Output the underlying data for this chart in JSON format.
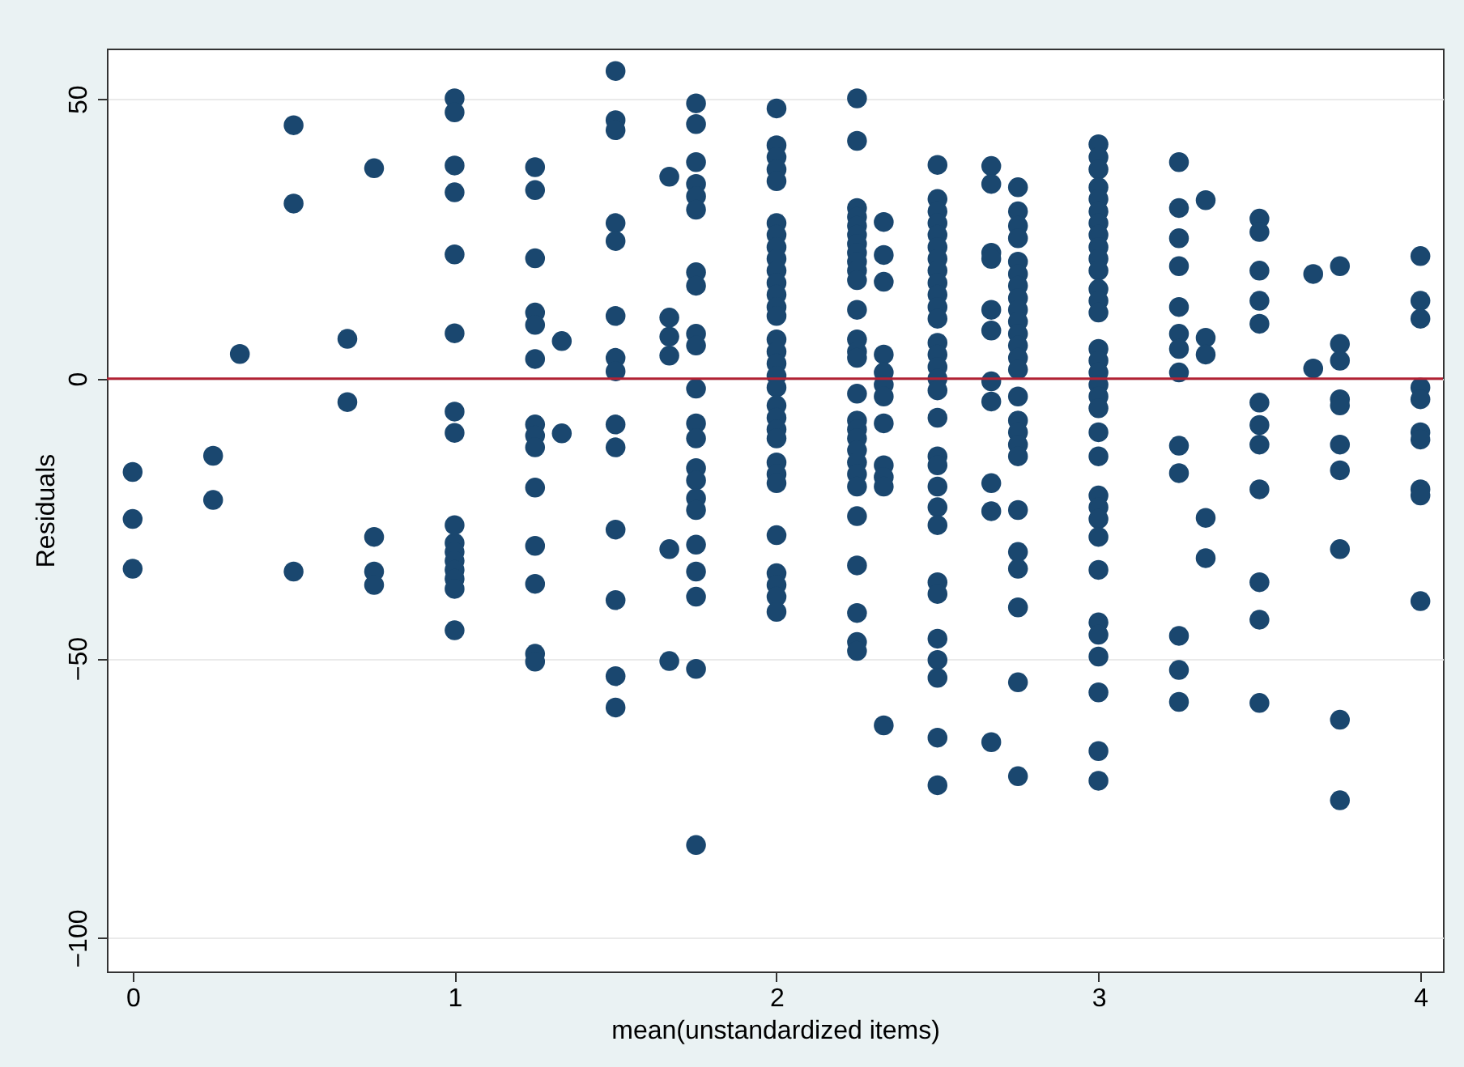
{
  "chart_data": {
    "type": "scatter",
    "xlabel": "mean(unstandardized items)",
    "ylabel": "Residuals",
    "xlim": [
      -0.08,
      4.07
    ],
    "ylim": [
      -106,
      59
    ],
    "xticks": [
      0,
      1,
      2,
      3,
      4
    ],
    "yticks": [
      -100,
      -50,
      0,
      50
    ],
    "grid": "y",
    "marker": "circle",
    "ref_lines": [
      {
        "axis": "y",
        "value": 0,
        "color": "#b22234"
      }
    ],
    "series": [
      {
        "color": "#1a476f",
        "x": [
          0,
          0,
          0,
          0.25,
          0.25,
          0.333,
          0.5,
          0.5,
          0.5,
          0.667,
          0.667,
          0.75,
          0.75,
          0.75,
          0.75,
          1,
          1,
          1,
          1,
          1,
          1,
          1,
          1,
          1,
          1,
          1,
          1,
          1,
          1,
          1,
          1,
          1.25,
          1.25,
          1.25,
          1.25,
          1.25,
          1.25,
          1.25,
          1.25,
          1.25,
          1.25,
          1.25,
          1.25,
          1.25,
          1.25,
          1.333,
          1.333,
          1.5,
          1.5,
          1.5,
          1.5,
          1.5,
          1.5,
          1.5,
          1.5,
          1.5,
          1.5,
          1.5,
          1.5,
          1.5,
          1.5,
          1.667,
          1.667,
          1.667,
          1.667,
          1.667,
          1.667,
          1.75,
          1.75,
          1.75,
          1.75,
          1.75,
          1.75,
          1.75,
          1.75,
          1.75,
          1.75,
          1.75,
          1.75,
          1.75,
          1.75,
          1.75,
          1.75,
          1.75,
          1.75,
          1.75,
          1.75,
          1.75,
          1.75,
          2,
          2,
          2,
          2,
          2,
          2,
          2,
          2,
          2,
          2,
          2,
          2,
          2,
          2,
          2,
          2,
          2,
          2,
          2,
          2,
          2,
          2,
          2,
          2,
          2,
          2,
          2,
          2,
          2,
          2,
          2,
          2.25,
          2.25,
          2.25,
          2.25,
          2.25,
          2.25,
          2.25,
          2.25,
          2.25,
          2.25,
          2.25,
          2.25,
          2.25,
          2.25,
          2.25,
          2.25,
          2.25,
          2.25,
          2.25,
          2.25,
          2.25,
          2.25,
          2.25,
          2.25,
          2.25,
          2.25,
          2.25,
          2.25,
          2.333,
          2.333,
          2.333,
          2.333,
          2.333,
          2.333,
          2.333,
          2.333,
          2.333,
          2.333,
          2.333,
          2.333,
          2.5,
          2.5,
          2.5,
          2.5,
          2.5,
          2.5,
          2.5,
          2.5,
          2.5,
          2.5,
          2.5,
          2.5,
          2.5,
          2.5,
          2.5,
          2.5,
          2.5,
          2.5,
          2.5,
          2.5,
          2.5,
          2.5,
          2.5,
          2.5,
          2.5,
          2.5,
          2.5,
          2.5,
          2.5,
          2.5,
          2.667,
          2.667,
          2.667,
          2.667,
          2.667,
          2.667,
          2.667,
          2.667,
          2.667,
          2.667,
          2.667,
          2.75,
          2.75,
          2.75,
          2.75,
          2.75,
          2.75,
          2.75,
          2.75,
          2.75,
          2.75,
          2.75,
          2.75,
          2.75,
          2.75,
          2.75,
          2.75,
          2.75,
          2.75,
          2.75,
          2.75,
          2.75,
          2.75,
          2.75,
          2.75,
          2.75,
          3,
          3,
          3,
          3,
          3,
          3,
          3,
          3,
          3,
          3,
          3,
          3,
          3,
          3,
          3,
          3,
          3,
          3,
          3,
          3,
          3,
          3,
          3,
          3,
          3,
          3,
          3,
          3,
          3,
          3,
          3,
          3,
          3,
          3.25,
          3.25,
          3.25,
          3.25,
          3.25,
          3.25,
          3.25,
          3.25,
          3.25,
          3.25,
          3.25,
          3.25,
          3.25,
          3.333,
          3.333,
          3.333,
          3.333,
          3.333,
          3.5,
          3.5,
          3.5,
          3.5,
          3.5,
          3.5,
          3.5,
          3.5,
          3.5,
          3.5,
          3.5,
          3.5,
          3.667,
          3.667,
          3.75,
          3.75,
          3.75,
          3.75,
          3.75,
          3.75,
          3.75,
          3.75,
          3.75,
          3.75,
          4,
          4,
          4,
          4,
          4,
          4,
          4,
          4,
          4,
          4
        ],
        "values": [
          -16.7,
          -25.1,
          -34.0,
          -13.8,
          -21.7,
          4.4,
          45.3,
          31.3,
          -34.5,
          7.1,
          -4.2,
          37.6,
          -28.3,
          -34.5,
          -36.9,
          50.1,
          47.6,
          38.1,
          33.3,
          22.2,
          8.1,
          -5.9,
          -9.7,
          -26.2,
          -29.4,
          -31.0,
          -32.6,
          -34.2,
          -35.8,
          -37.6,
          -45.0,
          37.8,
          33.7,
          21.5,
          11.8,
          9.6,
          3.5,
          -8.2,
          -10.2,
          -12.3,
          -19.5,
          -29.9,
          -36.7,
          -49.2,
          -50.6,
          6.7,
          -9.8,
          55.0,
          46.2,
          44.4,
          27.8,
          24.6,
          11.2,
          3.7,
          1.3,
          -8.2,
          -12.3,
          -27.0,
          -39.6,
          -53.2,
          -58.8,
          36.1,
          10.9,
          7.5,
          4.1,
          -30.5,
          -50.5,
          49.2,
          45.5,
          38.7,
          34.8,
          32.6,
          30.2,
          19.0,
          16.6,
          8.0,
          5.9,
          -1.8,
          -8.0,
          -10.7,
          -16.0,
          -18.2,
          -21.4,
          -23.5,
          -29.7,
          -34.5,
          -39.0,
          -51.9,
          -83.4,
          48.3,
          41.7,
          39.6,
          37.4,
          35.3,
          27.8,
          25.7,
          23.5,
          21.4,
          19.3,
          17.1,
          15.0,
          12.8,
          11.2,
          7.0,
          4.8,
          2.7,
          0.5,
          -1.6,
          -4.8,
          -7.0,
          -9.1,
          -10.7,
          -15.0,
          -17.1,
          -18.7,
          -28.0,
          -34.8,
          -36.9,
          -39.0,
          -41.7,
          50.1,
          42.5,
          30.5,
          28.9,
          27.3,
          25.7,
          24.1,
          22.5,
          20.9,
          19.3,
          17.6,
          12.3,
          7.0,
          4.8,
          3.7,
          -2.7,
          -7.5,
          -9.1,
          -10.7,
          -12.8,
          -15.0,
          -17.1,
          -19.3,
          -24.6,
          -33.4,
          -41.9,
          -47.1,
          -48.7,
          28.0,
          22.1,
          17.3,
          4.3,
          1.1,
          -1.1,
          -3.2,
          -8.0,
          -15.5,
          -17.6,
          -19.3,
          -62.0,
          38.2,
          32.1,
          29.9,
          27.8,
          25.7,
          23.5,
          21.4,
          19.3,
          17.1,
          15.0,
          12.8,
          10.7,
          6.4,
          4.3,
          2.1,
          0,
          -2.1,
          -7.0,
          -13.9,
          -15.5,
          -19.3,
          -23.0,
          -26.2,
          -36.4,
          -38.5,
          -46.5,
          -50.3,
          -53.5,
          -64.2,
          -72.7,
          38.0,
          34.8,
          22.5,
          21.4,
          12.3,
          8.6,
          -0.5,
          -4.1,
          -18.7,
          -23.7,
          -65.0,
          34.2,
          29.9,
          27.3,
          25.1,
          20.9,
          18.7,
          16.6,
          14.4,
          12.3,
          10.2,
          8.0,
          5.9,
          3.7,
          1.6,
          -3.2,
          -7.5,
          -9.6,
          -11.8,
          -13.9,
          -23.5,
          -31.0,
          -34.0,
          -40.9,
          -54.3,
          -71.1,
          41.9,
          39.6,
          37.4,
          34.2,
          32.1,
          29.9,
          27.8,
          25.7,
          23.5,
          21.4,
          19.3,
          16.0,
          13.9,
          11.8,
          5.3,
          3.2,
          1.1,
          -1.1,
          -3.2,
          -5.3,
          -9.6,
          -13.9,
          -20.9,
          -23.0,
          -25.1,
          -28.3,
          -34.2,
          -43.6,
          -45.8,
          -49.7,
          -56.1,
          -66.6,
          -71.9,
          38.7,
          30.5,
          25.1,
          20.1,
          12.8,
          8.0,
          5.3,
          1.1,
          -12.0,
          -16.9,
          -46.0,
          -52.1,
          -57.8,
          31.9,
          7.3,
          4.3,
          -24.9,
          -32.1,
          28.6,
          26.2,
          19.3,
          13.9,
          9.8,
          -4.3,
          -8.3,
          -11.8,
          -19.8,
          -36.4,
          -43.1,
          -58.0,
          18.7,
          1.8,
          20.1,
          6.2,
          3.2,
          -3.7,
          -4.8,
          -11.8,
          -16.4,
          -30.5,
          -61.0,
          -75.4,
          21.9,
          13.9,
          10.7,
          -1.6,
          -3.7,
          -9.6,
          -10.9,
          -19.8,
          -20.9,
          -39.8
        ]
      }
    ]
  }
}
